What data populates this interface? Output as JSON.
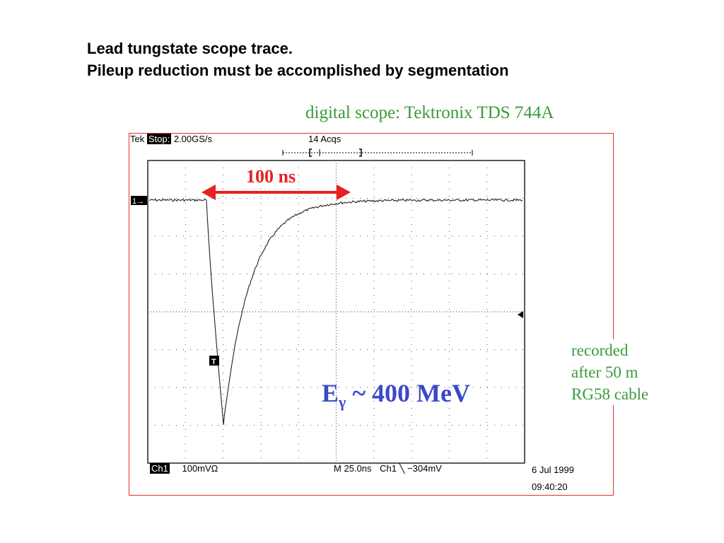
{
  "header": {
    "line1": "Lead tungstate scope trace.",
    "line2": "Pileup reduction must be accomplished by segmentation"
  },
  "scope_label": "digital scope: Tektronix TDS 744A",
  "scope": {
    "brand": "Tek",
    "state": "Stop:",
    "sample_rate": "2.00GS/s",
    "acquisitions": "14 Acqs",
    "channel": "Ch1",
    "volts_per_div": "100mVΩ",
    "timebase": "M 25.0ns",
    "trigger": "Ch1 ╲ −304mV",
    "date": "6 Jul 1999",
    "time": "09:40:20",
    "marker_1": "1→",
    "marker_t": "T"
  },
  "annotations": {
    "duration": "100 ns",
    "energy_main": "E",
    "energy_sub": "γ",
    "energy_rest": " ~ 400 MeV",
    "note": [
      "recorded",
      "after 50 m",
      "RG58 cable"
    ]
  },
  "colors": {
    "arrow": "#e82020",
    "frame": "#e03030",
    "note_green": "#3a9a3a",
    "energy_blue": "#3c48c8"
  }
}
